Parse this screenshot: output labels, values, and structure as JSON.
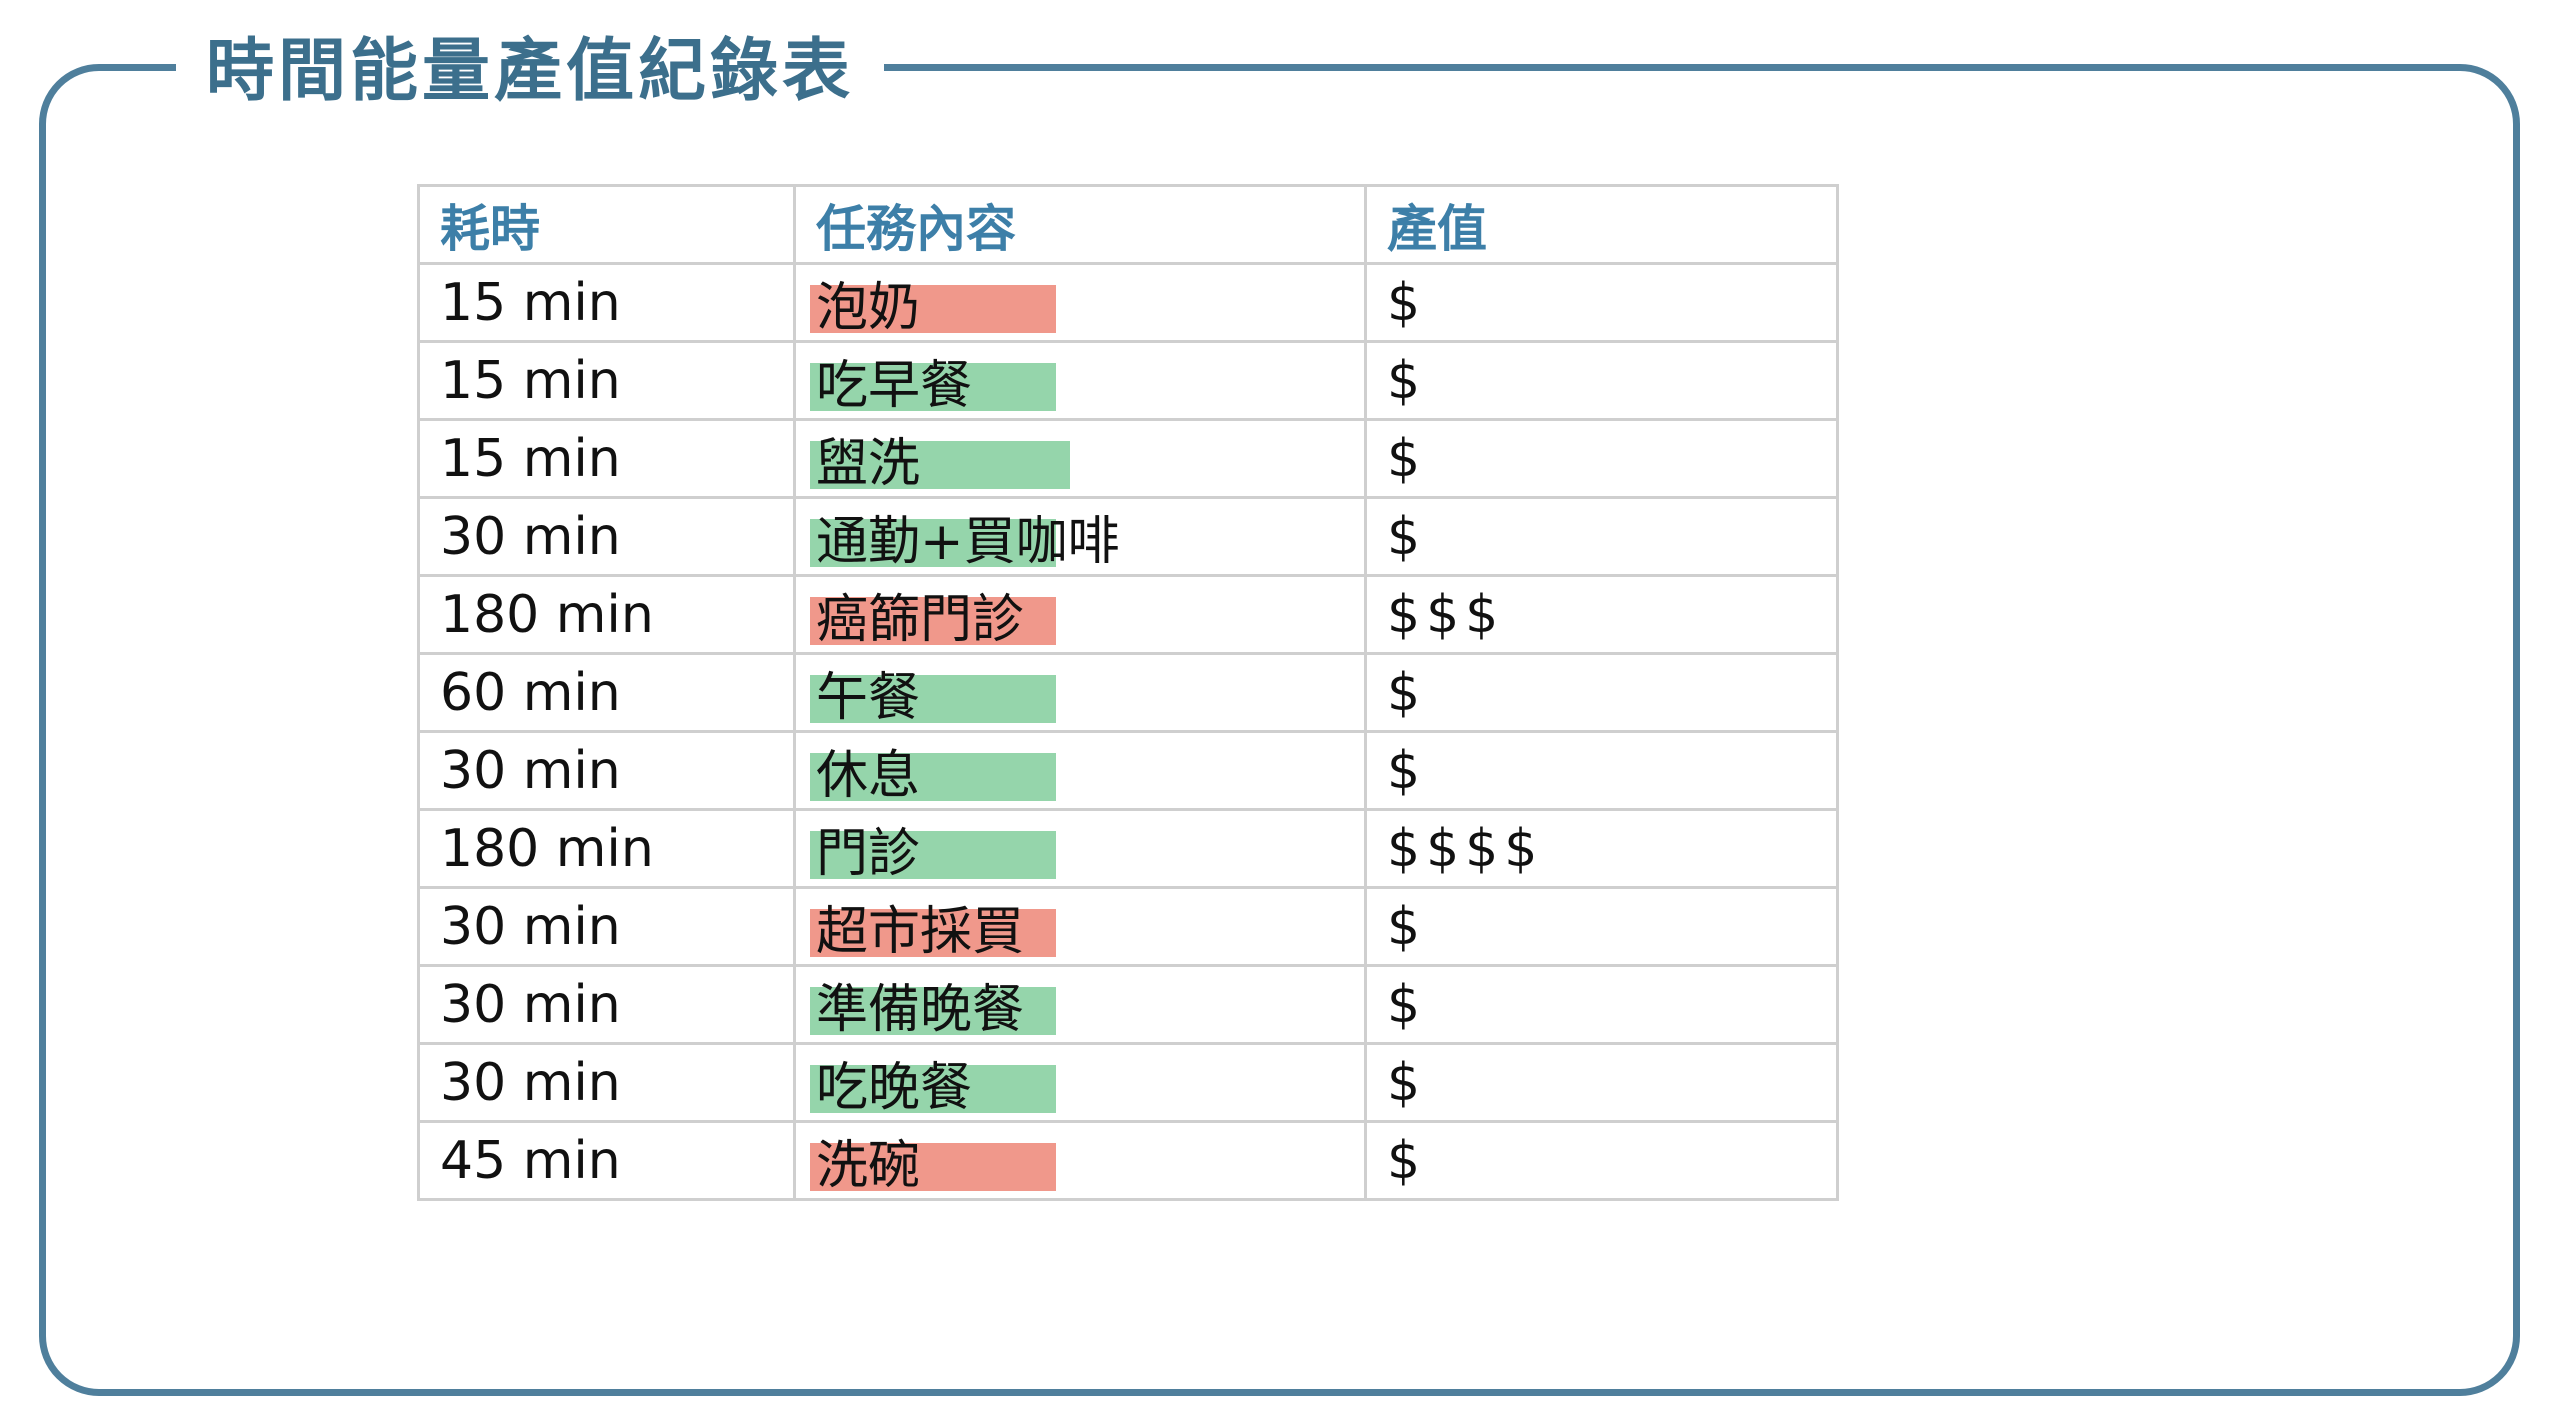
{
  "title": "時間能量產值紀錄表",
  "colors": {
    "frame": "#4f7f9c",
    "title": "#3c6f8c",
    "header": "#3d7fa8",
    "low_value_highlight": "#f0988b",
    "keep_highlight": "#95d5ab",
    "grid": "#cfcfcf"
  },
  "table": {
    "headers": {
      "time": "耗時",
      "task": "任務內容",
      "value": "產值"
    },
    "rows": [
      {
        "time": "15 min",
        "task": "泡奶",
        "value": "$",
        "highlight": "red"
      },
      {
        "time": "15 min",
        "task": "吃早餐",
        "value": "$",
        "highlight": "green"
      },
      {
        "time": "15 min",
        "task": "盥洗",
        "value": "$",
        "highlight": "green"
      },
      {
        "time": "30 min",
        "task": "通勤+買咖啡",
        "value": "$",
        "highlight": "green"
      },
      {
        "time": "180 min",
        "task": "癌篩門診",
        "value": "$$$",
        "highlight": "red"
      },
      {
        "time": "60 min",
        "task": "午餐",
        "value": "$",
        "highlight": "green"
      },
      {
        "time": "30 min",
        "task": "休息",
        "value": "$",
        "highlight": "green"
      },
      {
        "time": "180 min",
        "task": "門診",
        "value": "$$$$",
        "highlight": "green"
      },
      {
        "time": "30 min",
        "task": "超市採買",
        "value": "$",
        "highlight": "red"
      },
      {
        "time": "30 min",
        "task": "準備晚餐",
        "value": "$",
        "highlight": "green"
      },
      {
        "time": "30 min",
        "task": "吃晚餐",
        "value": "$",
        "highlight": "green"
      },
      {
        "time": "45 min",
        "task": "洗碗",
        "value": "$",
        "highlight": "red"
      }
    ]
  }
}
